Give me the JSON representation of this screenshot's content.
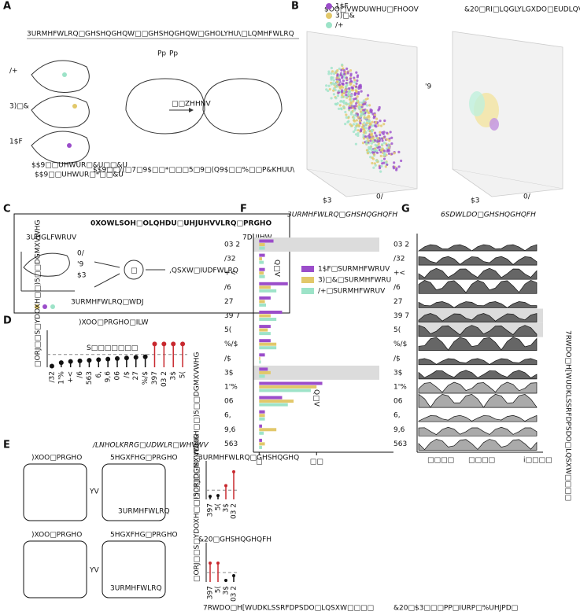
{
  "panels": {
    "A": {
      "letter": "A",
      "heading": "3URMHFWLRQ□GHSHQGHQW□□GHSHQGHQW□GHOLYHU\\□LQMHFWLRQ",
      "groups": [
        "/+",
        "3)□&",
        "1$F"
      ],
      "wait": "□□ZHHNV",
      "pp": [
        "Pp",
        "Pp"
      ],
      "notes": [
        "$$9□□UHWUR□&U□□&U",
        "$$9□□UHWUR□*□□&U",
        "$$9□□/(□7□9$□□*□□□5□9□(Q9$□□%□□P&KHUU\\"
      ]
    },
    "B": {
      "letter": "B",
      "left_title": "$OO□VWDUWHU□FHOOV",
      "right_title": "&20□RI□LQGLYLGXDO□EUDLQV",
      "legend": [
        "1$F",
        "3)□&",
        "/+"
      ],
      "axes": [
        "$3",
        "0/",
        "'9"
      ]
    },
    "C": {
      "letter": "C",
      "title": "0XOWLSOH□OLQHDU□UHJUHVVLRQ□PRGHO",
      "predictors": "3UHGLFWRUV",
      "target": "7DUJHW",
      "axes": [
        "0/",
        "'9",
        "$3"
      ],
      "tag": "3URMHFWLRQ□WDJ",
      "input": ",QSXW□IUDFWLRQ",
      "node": "□"
    },
    "D": {
      "letter": "D"
    },
    "E": {
      "letter": "E",
      "title": "/LNHOLKRRG□UDWLR□WHVWV",
      "full": ")XOO□PRGHO",
      "reduced": "5HGXFHG□PRGHO",
      "vs": "YV",
      "projection": "3URMHFWLRQ"
    },
    "F": {
      "letter": "F",
      "xlabel": "7RWDO□H[WUDKLSSRFDPSDO□LQSXW□□□□",
      "ns": "Q□V"
    },
    "G": {
      "letter": "G",
      "title": "6SDWLDO□GHSHQGHQFH",
      "xticks": [
        "□□□□",
        "□□□□",
        "i□□□□"
      ],
      "xlabel": "&20□$3□□□PP□IURP□%UHJPD□",
      "ylabel": "7RWDO□H[WUDKLSSRFDPSDO□LQSXW□□□□"
    }
  },
  "chart_data": [
    {
      "type": "lollipop",
      "title": ")XOO□PRGHO□ILW",
      "ylabel": "□ORJ□□S□YDOXH□□)5□□DGMXVWHG",
      "categories": [
        "/32",
        "1'%",
        "+<",
        "/6",
        "563",
        "6,",
        "9,6",
        "06",
        "/$",
        "27",
        "%/$",
        "397",
        "03 2",
        "3$",
        "5("
      ],
      "values": [
        0.2,
        0.8,
        1.0,
        1.1,
        1.2,
        1.3,
        1.4,
        1.5,
        1.6,
        1.7,
        1.8,
        4.0,
        4.0,
        4.0,
        4.0
      ],
      "point_colors": [
        "#111",
        "#111",
        "#111",
        "#111",
        "#111",
        "#111",
        "#111",
        "#111",
        "#111",
        "#111",
        "#111",
        "#c8282e",
        "#c8282e",
        "#c8282e",
        "#c8282e"
      ],
      "threshold": 2.2,
      "threshold_label": "S□□□□□□□",
      "ylim": [
        0,
        5
      ]
    },
    {
      "type": "lollipop",
      "title": "3URMHFWLRQ□GHSHQGHQ",
      "ylabel": "□ORJ□□S□YDOXH□□)5□□DGMXVWHG",
      "categories": [
        "397",
        "5(",
        "3$",
        "03 2"
      ],
      "values": [
        0.4,
        0.5,
        1.8,
        3.6
      ],
      "point_colors": [
        "#111",
        "#111",
        "#c8282e",
        "#c8282e"
      ],
      "threshold": 1.2,
      "ylim": [
        0,
        4
      ]
    },
    {
      "type": "lollipop",
      "title": "&20□GHSHQGHQFH",
      "ylabel": "□ORJ□□S□YDOXH□□)5□□DGMXVWHG",
      "categories": [
        "397",
        "5(",
        "3$",
        "03 2"
      ],
      "values": [
        2.4,
        2.4,
        0.2,
        0.8
      ],
      "point_colors": [
        "#c8282e",
        "#c8282e",
        "#111",
        "#111"
      ],
      "threshold": 1.2,
      "ylim": [
        0,
        4
      ]
    },
    {
      "type": "hbar",
      "title": "3URMHFWLRQ□GHSHQGHQFH",
      "categories": [
        "03 2",
        "/32",
        "+<",
        "/6",
        "27",
        "39 7",
        "5(",
        "%/$",
        "/$",
        "3$",
        "1'%",
        "06",
        "6,",
        "9,6",
        "563"
      ],
      "shaded": [
        true,
        false,
        false,
        false,
        false,
        false,
        false,
        false,
        false,
        true,
        false,
        false,
        false,
        false,
        false
      ],
      "series": [
        {
          "name": "1$F□SURMHFWRUV",
          "color": "#9b4dca",
          "values": [
            2.5,
            1,
            1,
            5,
            2,
            4,
            2,
            2,
            1,
            1.5,
            11,
            4,
            1,
            0.5,
            0.5
          ]
        },
        {
          "name": "3)□&□SURMHFWRU",
          "color": "#e2c86a",
          "values": [
            1,
            0.5,
            0.8,
            2,
            1,
            2,
            1.5,
            3,
            0.2,
            2,
            10,
            6,
            1,
            3,
            1
          ]
        },
        {
          "name": "/+□SURMHFWRUV",
          "color": "#9de3c8",
          "values": [
            1,
            0.8,
            1,
            3,
            1.2,
            3,
            2,
            3,
            0.3,
            1,
            9,
            5,
            1,
            0.8,
            0.5
          ]
        }
      ],
      "xlim": [
        -1,
        23.4
      ],
      "xticks": [
        {
          "value": 0,
          "label": "□"
        },
        {
          "value": 10,
          "label": "□□"
        }
      ]
    }
  ]
}
